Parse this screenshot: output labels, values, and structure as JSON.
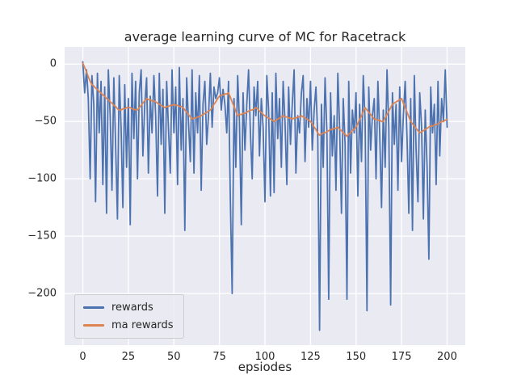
{
  "chart_data": {
    "type": "line",
    "title": "average learning curve of MC for Racetrack",
    "xlabel": "epsiodes",
    "ylabel": "",
    "x0": 0,
    "dx": 1,
    "xlim": [
      -10,
      210
    ],
    "ylim": [
      -245,
      15
    ],
    "xticks": [
      0,
      25,
      50,
      75,
      100,
      125,
      150,
      175,
      200
    ],
    "xtick_labels": [
      "0",
      "25",
      "50",
      "75",
      "100",
      "125",
      "150",
      "175",
      "200"
    ],
    "yticks": [
      0,
      -50,
      -100,
      -150,
      -200
    ],
    "ytick_labels": [
      "0",
      "−50",
      "−100",
      "−150",
      "−200"
    ],
    "grid": true,
    "legend_position": "lower left",
    "plot_bg": "#eaeaf2",
    "grid_color": "#ffffff",
    "series": [
      {
        "name": "rewards",
        "color": "#4c72b0",
        "values": [
          2,
          -25,
          -5,
          -30,
          -100,
          -10,
          -35,
          -120,
          -8,
          -60,
          -15,
          -105,
          -20,
          -130,
          -5,
          -45,
          -110,
          -12,
          -70,
          -135,
          -10,
          -55,
          -125,
          -18,
          -90,
          -30,
          -140,
          -8,
          -65,
          -15,
          -100,
          -25,
          -5,
          -80,
          -35,
          -12,
          -95,
          -28,
          -60,
          -10,
          -45,
          -115,
          -8,
          -70,
          -22,
          -130,
          -15,
          -55,
          -95,
          -5,
          -60,
          -20,
          -105,
          -3,
          -75,
          -30,
          -145,
          -12,
          -50,
          -85,
          -5,
          -95,
          -25,
          -60,
          -10,
          -110,
          -35,
          -15,
          -70,
          -45,
          -8,
          -55,
          -20,
          -30,
          -25,
          -12,
          -40,
          -22,
          -35,
          -60,
          -15,
          -120,
          -200,
          -30,
          -90,
          -10,
          -50,
          -140,
          -25,
          -75,
          -35,
          -5,
          -60,
          -100,
          -20,
          -45,
          -15,
          -80,
          -30,
          -55,
          -120,
          -10,
          -40,
          -115,
          -25,
          -112,
          -8,
          -65,
          -30,
          -90,
          -15,
          -50,
          -105,
          -20,
          -70,
          -35,
          -5,
          -95,
          -45,
          -60,
          -25,
          -10,
          -85,
          -30,
          -55,
          -15,
          -75,
          -40,
          -20,
          -65,
          -232,
          -35,
          -90,
          -12,
          -60,
          -205,
          -25,
          -80,
          -45,
          -110,
          -8,
          -55,
          -130,
          -30,
          -70,
          -205,
          -15,
          -95,
          -40,
          -60,
          -25,
          -115,
          -35,
          -85,
          -10,
          -50,
          -215,
          -20,
          -75,
          -45,
          -30,
          -100,
          -15,
          -60,
          -125,
          -40,
          -90,
          -5,
          -55,
          -210,
          -25,
          -70,
          -35,
          -110,
          -20,
          -85,
          -45,
          -15,
          -65,
          -130,
          -30,
          -145,
          -10,
          -75,
          -120,
          -25,
          -55,
          -135,
          -40,
          -90,
          -170,
          -20,
          -60,
          -35,
          -105,
          -15,
          -80,
          -30,
          -50,
          -5,
          -55
        ]
      },
      {
        "name": "ma rewards",
        "color": "#dd8452",
        "values": [
          1,
          -3,
          -7,
          -11,
          -15,
          -18,
          -19,
          -21,
          -22,
          -24,
          -25,
          -27,
          -28,
          -30,
          -31,
          -33,
          -34,
          -36,
          -37,
          -39,
          -40,
          -40,
          -39,
          -39,
          -38,
          -38,
          -38,
          -39,
          -39,
          -40,
          -40,
          -38,
          -36,
          -34,
          -32,
          -30,
          -31,
          -31,
          -32,
          -32,
          -33,
          -34,
          -35,
          -36,
          -37,
          -38,
          -37,
          -37,
          -36,
          -36,
          -35,
          -36,
          -36,
          -37,
          -37,
          -38,
          -40,
          -42,
          -44,
          -46,
          -48,
          -47,
          -47,
          -46,
          -46,
          -45,
          -44,
          -43,
          -42,
          -41,
          -40,
          -38,
          -35,
          -33,
          -30,
          -28,
          -27,
          -27,
          -26,
          -26,
          -25,
          -29,
          -33,
          -37,
          -41,
          -45,
          -44,
          -44,
          -43,
          -43,
          -42,
          -41,
          -40,
          -40,
          -39,
          -38,
          -39,
          -41,
          -42,
          -44,
          -45,
          -46,
          -47,
          -48,
          -49,
          -50,
          -49,
          -48,
          -47,
          -46,
          -45,
          -46,
          -46,
          -47,
          -47,
          -48,
          -47,
          -47,
          -46,
          -46,
          -45,
          -46,
          -47,
          -48,
          -49,
          -50,
          -52,
          -55,
          -57,
          -60,
          -62,
          -61,
          -60,
          -60,
          -59,
          -58,
          -57,
          -57,
          -56,
          -56,
          -55,
          -57,
          -58,
          -60,
          -61,
          -63,
          -61,
          -60,
          -58,
          -57,
          -55,
          -52,
          -48,
          -45,
          -41,
          -38,
          -40,
          -42,
          -44,
          -46,
          -48,
          -48,
          -49,
          -49,
          -50,
          -50,
          -47,
          -44,
          -41,
          -38,
          -35,
          -34,
          -33,
          -32,
          -31,
          -30,
          -34,
          -38,
          -42,
          -46,
          -50,
          -52,
          -54,
          -56,
          -58,
          -60,
          -59,
          -58,
          -57,
          -56,
          -55,
          -54,
          -54,
          -53,
          -53,
          -52,
          -51,
          -50,
          -50,
          -49,
          -48
        ]
      }
    ]
  }
}
